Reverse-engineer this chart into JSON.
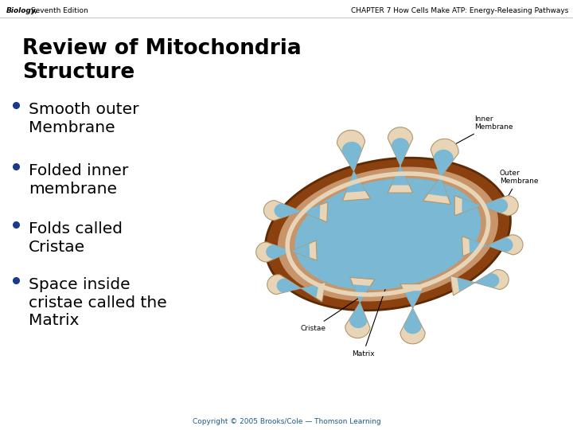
{
  "bg_color": "#ffffff",
  "header_left_italic": "Biology,",
  "header_left_regular": " Seventh Edition",
  "header_right": "CHAPTER 7 How Cells Make ATP: Energy-Releasing Pathways",
  "title_line1": "Review of Mitochondria",
  "title_line2": "Structure",
  "bullets": [
    "Smooth outer\nMembrane",
    "Folded inner\nmembrane",
    "Folds called\nCristae",
    "Space inside\ncristae called the\nMatrix"
  ],
  "copyright": "Copyright © 2005 Brooks/Cole — Thomson Learning",
  "header_fontsize": 6.5,
  "title_fontsize": 19,
  "bullet_fontsize": 14.5,
  "copyright_fontsize": 6.5,
  "header_color": "#000000",
  "title_color": "#000000",
  "bullet_color": "#000000",
  "bullet_dot_color": "#1a3a8a",
  "copyright_color": "#1a5a8a",
  "diagram_bg": "#f0f0c8",
  "outer_brown": "#8B4010",
  "outer_brown_dark": "#5C2A05",
  "inner_tan": "#c8956a",
  "cristae_cream": "#e8d5b8",
  "cristae_blue": "#7ab8d4",
  "matrix_blue": "#7ab8d4",
  "label_color": "#000000",
  "label_fontsize": 6.5
}
